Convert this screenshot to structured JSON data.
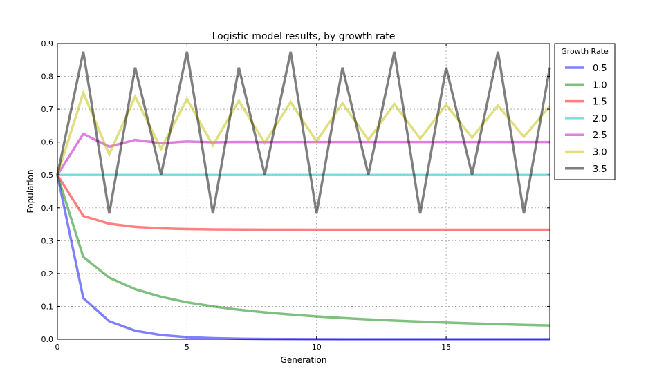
{
  "chart_data": {
    "type": "line",
    "title": "Logistic model results, by growth rate",
    "xlabel": "Generation",
    "ylabel": "Population",
    "xlim": [
      0,
      19
    ],
    "ylim": [
      0,
      0.9
    ],
    "xticks": [
      0,
      5,
      10,
      15
    ],
    "yticks": [
      "0.0",
      "0.1",
      "0.2",
      "0.3",
      "0.4",
      "0.5",
      "0.6",
      "0.7",
      "0.8",
      "0.9"
    ],
    "grid": true,
    "legend": {
      "title": "Growth Rate",
      "placement": "outside-right"
    },
    "x": [
      0,
      1,
      2,
      3,
      4,
      5,
      6,
      7,
      8,
      9,
      10,
      11,
      12,
      13,
      14,
      15,
      16,
      17,
      18,
      19
    ],
    "series": [
      {
        "name": "0.5",
        "color": "#0000ff",
        "values": [
          0.5,
          0.125,
          0.0547,
          0.0259,
          0.0126,
          0.0062,
          0.0031,
          0.0015,
          0.0008,
          0.0004,
          0.0002,
          0.0001,
          0.0,
          0.0,
          0.0,
          0.0,
          0.0,
          0.0,
          0.0,
          0.0
        ]
      },
      {
        "name": "1.0",
        "color": "#008000",
        "values": [
          0.5,
          0.25,
          0.1875,
          0.1523,
          0.1291,
          0.1124,
          0.0998,
          0.0898,
          0.0818,
          0.0751,
          0.0694,
          0.0646,
          0.0604,
          0.0568,
          0.0535,
          0.0507,
          0.0481,
          0.0458,
          0.0437,
          0.0418
        ]
      },
      {
        "name": "1.5",
        "color": "#ff0000",
        "values": [
          0.5,
          0.375,
          0.3516,
          0.3419,
          0.3375,
          0.3354,
          0.3344,
          0.3339,
          0.3336,
          0.3335,
          0.3334,
          0.3334,
          0.3333,
          0.3333,
          0.3333,
          0.3333,
          0.3333,
          0.3333,
          0.3333,
          0.3333
        ]
      },
      {
        "name": "2.0",
        "color": "#00bfbf",
        "values": [
          0.5,
          0.5,
          0.5,
          0.5,
          0.5,
          0.5,
          0.5,
          0.5,
          0.5,
          0.5,
          0.5,
          0.5,
          0.5,
          0.5,
          0.5,
          0.5,
          0.5,
          0.5,
          0.5,
          0.5
        ]
      },
      {
        "name": "2.5",
        "color": "#bf00bf",
        "values": [
          0.5,
          0.625,
          0.5859,
          0.6065,
          0.5966,
          0.6017,
          0.5992,
          0.6004,
          0.5998,
          0.6001,
          0.6,
          0.6,
          0.6,
          0.6,
          0.6,
          0.6,
          0.6,
          0.6,
          0.6,
          0.6
        ]
      },
      {
        "name": "3.0",
        "color": "#bfbf00",
        "values": [
          0.5,
          0.75,
          0.5625,
          0.7383,
          0.5797,
          0.731,
          0.59,
          0.7257,
          0.5971,
          0.7218,
          0.6023,
          0.7186,
          0.6066,
          0.7159,
          0.6102,
          0.7136,
          0.6134,
          0.7115,
          0.6158,
          0.7097
        ]
      },
      {
        "name": "3.5",
        "color": "#000000",
        "values": [
          0.5,
          0.875,
          0.3828,
          0.8269,
          0.5009,
          0.875,
          0.3828,
          0.8269,
          0.5009,
          0.875,
          0.3828,
          0.8269,
          0.5009,
          0.875,
          0.3828,
          0.8269,
          0.5009,
          0.875,
          0.3828,
          0.8269
        ]
      }
    ]
  }
}
